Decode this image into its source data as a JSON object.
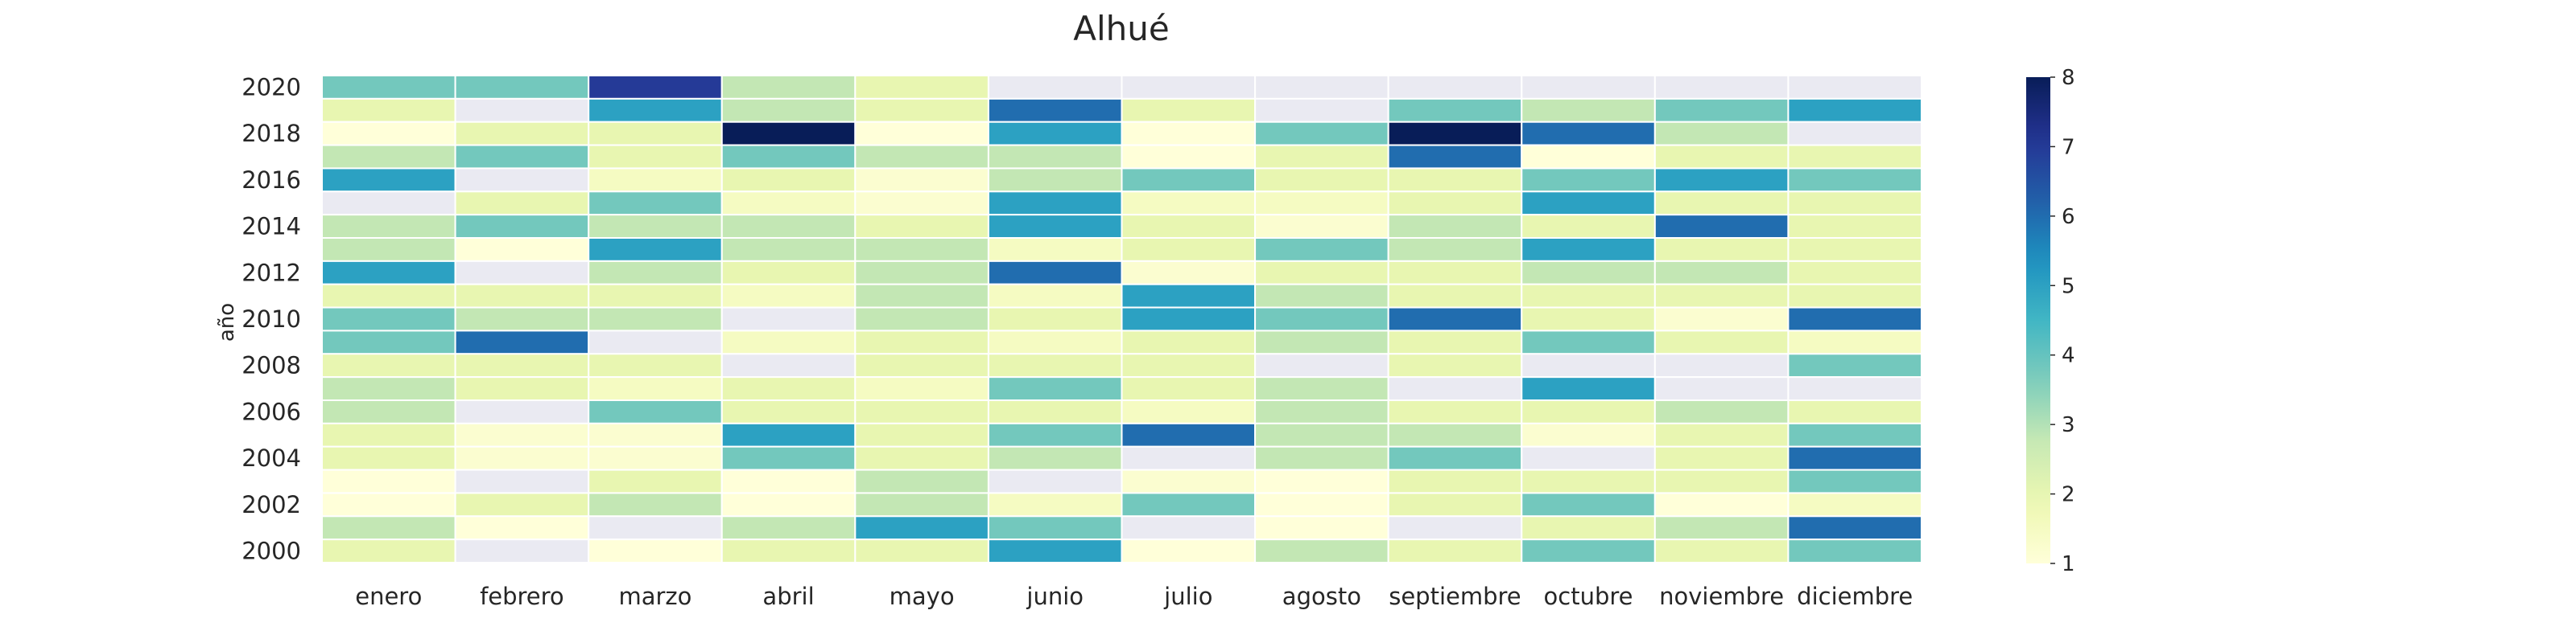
{
  "chart_data": {
    "type": "heatmap",
    "title": "Alhué",
    "ylabel": "año",
    "xlabel": "",
    "x_tick_labels": [
      "enero",
      "febrero",
      "marzo",
      "abril",
      "mayo",
      "junio",
      "julio",
      "agosto",
      "septiembre",
      "octubre",
      "noviembre",
      "diciembre"
    ],
    "years": [
      2020,
      2019,
      2018,
      2017,
      2016,
      2015,
      2014,
      2013,
      2012,
      2011,
      2010,
      2009,
      2008,
      2007,
      2006,
      2005,
      2004,
      2003,
      2002,
      2001,
      2000
    ],
    "y_tick_labels": [
      "2020",
      "2018",
      "2016",
      "2014",
      "2012",
      "2010",
      "2008",
      "2006",
      "2004",
      "2002",
      "2000"
    ],
    "values": [
      [
        3.8,
        3.8,
        7.0,
        2.8,
        2.0,
        null,
        null,
        null,
        null,
        null,
        null,
        null
      ],
      [
        2.0,
        null,
        5.0,
        2.8,
        2.0,
        6.0,
        2.0,
        null,
        3.8,
        2.8,
        3.8,
        5.0
      ],
      [
        1.0,
        2.0,
        2.0,
        8.0,
        1.0,
        5.0,
        1.0,
        3.8,
        8.0,
        6.0,
        2.8,
        null
      ],
      [
        2.8,
        3.8,
        2.0,
        3.8,
        2.8,
        2.8,
        1.0,
        2.0,
        6.0,
        1.0,
        2.0,
        2.0
      ],
      [
        5.0,
        null,
        1.5,
        2.0,
        1.2,
        2.8,
        3.8,
        2.0,
        2.0,
        3.8,
        5.0,
        3.8
      ],
      [
        null,
        2.0,
        3.8,
        1.5,
        1.2,
        5.0,
        1.5,
        1.5,
        2.0,
        5.0,
        2.0,
        2.0
      ],
      [
        2.8,
        3.8,
        2.8,
        2.8,
        2.0,
        5.0,
        2.0,
        1.2,
        2.8,
        2.0,
        6.0,
        2.0
      ],
      [
        2.8,
        1.0,
        5.0,
        2.8,
        2.8,
        1.5,
        2.0,
        3.8,
        2.8,
        5.0,
        2.0,
        2.0
      ],
      [
        5.0,
        null,
        2.8,
        2.0,
        2.8,
        6.0,
        1.2,
        2.0,
        2.0,
        2.8,
        2.8,
        2.0
      ],
      [
        2.0,
        2.0,
        2.0,
        1.5,
        2.8,
        1.5,
        5.0,
        2.8,
        2.0,
        2.0,
        2.0,
        2.0
      ],
      [
        3.8,
        2.8,
        2.8,
        null,
        2.8,
        2.0,
        5.0,
        3.8,
        6.0,
        2.0,
        1.2,
        6.0
      ],
      [
        3.8,
        6.0,
        null,
        1.5,
        2.0,
        1.5,
        2.0,
        2.8,
        2.0,
        3.8,
        2.0,
        1.5
      ],
      [
        2.0,
        2.0,
        2.0,
        null,
        2.0,
        2.0,
        2.0,
        null,
        2.0,
        null,
        null,
        3.8
      ],
      [
        2.8,
        2.0,
        1.5,
        2.0,
        1.5,
        3.8,
        2.0,
        2.8,
        null,
        5.0,
        null,
        null
      ],
      [
        2.8,
        null,
        3.8,
        2.0,
        2.0,
        2.0,
        1.5,
        2.8,
        2.0,
        2.0,
        2.8,
        2.0
      ],
      [
        2.0,
        1.2,
        1.2,
        5.0,
        2.0,
        3.8,
        6.0,
        2.8,
        2.8,
        1.2,
        2.0,
        3.8
      ],
      [
        2.0,
        1.2,
        1.2,
        3.8,
        2.0,
        2.8,
        null,
        2.8,
        3.8,
        null,
        2.0,
        6.0
      ],
      [
        1.0,
        null,
        2.0,
        1.0,
        2.8,
        null,
        1.2,
        1.0,
        2.0,
        2.0,
        2.0,
        3.8
      ],
      [
        1.0,
        2.0,
        2.8,
        1.0,
        2.8,
        1.5,
        3.8,
        1.0,
        2.0,
        3.8,
        1.0,
        1.5
      ],
      [
        2.8,
        1.0,
        null,
        2.8,
        5.0,
        3.8,
        null,
        1.0,
        null,
        2.0,
        2.8,
        6.0
      ],
      [
        2.0,
        null,
        1.0,
        2.0,
        2.0,
        5.0,
        1.0,
        2.8,
        2.0,
        3.8,
        2.0,
        3.8
      ]
    ],
    "color_scale": {
      "min": 1,
      "max": 8,
      "ticks": [
        1,
        2,
        3,
        4,
        5,
        6,
        7,
        8
      ],
      "colormap": "YlGnBu"
    },
    "missing_color": "#eaeaf2",
    "grid": false,
    "legend": "colorbar-right"
  }
}
